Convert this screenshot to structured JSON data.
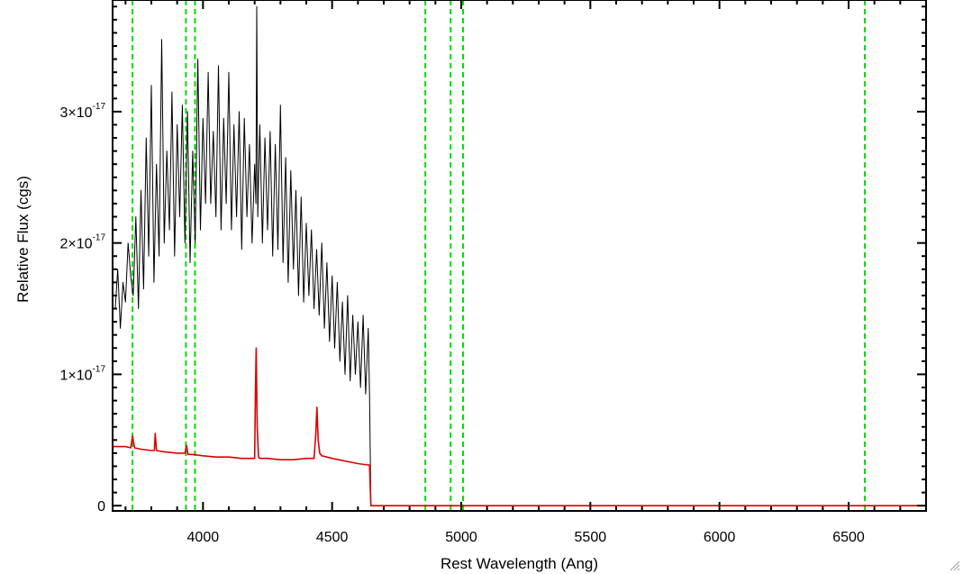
{
  "chart_data": {
    "type": "line",
    "title": "",
    "xlabel": "Rest Wavelength (Ang)",
    "ylabel": "Relative Flux (cgs)",
    "xlim": [
      3650,
      6800
    ],
    "ylim": [
      -4e-19,
      3.85e-17
    ],
    "x_ticks": [
      {
        "value": 4000,
        "label": "4000"
      },
      {
        "value": 4500,
        "label": "4500"
      },
      {
        "value": 5000,
        "label": "5000"
      },
      {
        "value": 5500,
        "label": "5500"
      },
      {
        "value": 6000,
        "label": "6000"
      },
      {
        "value": 6500,
        "label": "6500"
      }
    ],
    "y_ticks": [
      {
        "value": 0,
        "mantissa": "0",
        "exponent": ""
      },
      {
        "value": 1e-17,
        "mantissa": "1×10",
        "exponent": "-17"
      },
      {
        "value": 2e-17,
        "mantissa": "2×10",
        "exponent": "-17"
      },
      {
        "value": 3e-17,
        "mantissa": "3×10",
        "exponent": "-17"
      }
    ],
    "reference_lines": {
      "color": "#00dd00",
      "style": "dashed",
      "x": [
        3727,
        3934,
        3969,
        4861,
        4959,
        5007,
        6563
      ]
    },
    "grid": false,
    "series": [
      {
        "color": "#000000",
        "x": [
          3660,
          3670,
          3680,
          3690,
          3700,
          3710,
          3720,
          3730,
          3740,
          3750,
          3760,
          3770,
          3780,
          3790,
          3800,
          3810,
          3820,
          3830,
          3840,
          3850,
          3860,
          3870,
          3880,
          3890,
          3900,
          3910,
          3920,
          3930,
          3940,
          3950,
          3960,
          3970,
          3980,
          3990,
          4000,
          4010,
          4020,
          4030,
          4040,
          4050,
          4060,
          4070,
          4080,
          4090,
          4100,
          4110,
          4120,
          4130,
          4140,
          4150,
          4160,
          4170,
          4180,
          4190,
          4200,
          4205,
          4208,
          4212,
          4220,
          4230,
          4240,
          4250,
          4260,
          4270,
          4280,
          4290,
          4300,
          4310,
          4320,
          4330,
          4340,
          4350,
          4360,
          4370,
          4380,
          4390,
          4400,
          4410,
          4420,
          4430,
          4440,
          4450,
          4460,
          4470,
          4480,
          4490,
          4500,
          4510,
          4520,
          4530,
          4540,
          4550,
          4560,
          4570,
          4580,
          4590,
          4600,
          4610,
          4620,
          4630,
          4640,
          4645,
          4650,
          4660,
          4700,
          5000,
          5500,
          6000,
          6500,
          6800
        ],
        "y": [
          1.5e-17,
          1.8e-17,
          1.35e-17,
          1.7e-17,
          1.55e-17,
          2e-17,
          1.75e-17,
          1.6e-17,
          2.2e-17,
          1.5e-17,
          2.4e-17,
          1.65e-17,
          2.8e-17,
          1.9e-17,
          3.2e-17,
          1.7e-17,
          2.6e-17,
          1.9e-17,
          3.55e-17,
          2e-17,
          2.7e-17,
          2.1e-17,
          3.15e-17,
          1.9e-17,
          2.9e-17,
          2.2e-17,
          3.05e-17,
          2e-17,
          3e-17,
          1.85e-17,
          2.7e-17,
          2e-17,
          3.4e-17,
          2.1e-17,
          2.95e-17,
          2.3e-17,
          3.3e-17,
          2.3e-17,
          2.85e-17,
          2.2e-17,
          3.35e-17,
          2.1e-17,
          2.95e-17,
          2.3e-17,
          3.3e-17,
          2.1e-17,
          2.9e-17,
          2.2e-17,
          3e-17,
          1.95e-17,
          2.95e-17,
          2.2e-17,
          2.75e-17,
          2e-17,
          2.6e-17,
          2.3e-17,
          3.8e-17,
          2.2e-17,
          2.9e-17,
          2e-17,
          2.8e-17,
          2.1e-17,
          2.85e-17,
          1.9e-17,
          2.75e-17,
          1.95e-17,
          3.05e-17,
          1.85e-17,
          2.65e-17,
          1.7e-17,
          2.55e-17,
          1.8e-17,
          2.4e-17,
          1.6e-17,
          2.35e-17,
          1.55e-17,
          2.15e-17,
          1.6e-17,
          2.1e-17,
          1.5e-17,
          1.95e-17,
          1.45e-17,
          2e-17,
          1.35e-17,
          1.85e-17,
          1.25e-17,
          1.75e-17,
          1.2e-17,
          1.7e-17,
          1.1e-17,
          1.55e-17,
          1e-17,
          1.6e-17,
          9.5e-18,
          1.45e-17,
          1e-17,
          1.4e-17,
          9e-18,
          1.45e-17,
          8.5e-18,
          1.35e-17,
          8.5e-18,
          0.0,
          0.0,
          0.0,
          0.0,
          0.0,
          0.0,
          0.0,
          0.0
        ]
      },
      {
        "color": "#dd0000",
        "x": [
          3650,
          3700,
          3720,
          3727,
          3735,
          3760,
          3800,
          3812,
          3815,
          3820,
          3850,
          3900,
          3930,
          3936,
          3942,
          3960,
          4000,
          4050,
          4100,
          4150,
          4190,
          4200,
          4203,
          4206,
          4210,
          4215,
          4220,
          4250,
          4300,
          4350,
          4400,
          4430,
          4437,
          4441,
          4446,
          4452,
          4460,
          4500,
          4550,
          4600,
          4640,
          4645,
          4650,
          4660,
          4700,
          5000,
          5500,
          6000,
          6500,
          6800
        ],
        "y": [
          4.5e-18,
          4.5e-18,
          4.4e-18,
          5.3e-18,
          4.4e-18,
          4.3e-18,
          4.2e-18,
          4.2e-18,
          5.5e-18,
          4.2e-18,
          4.1e-18,
          4e-18,
          4e-18,
          4.6e-18,
          3.9e-18,
          3.9e-18,
          3.8e-18,
          3.7e-18,
          3.7e-18,
          3.6e-18,
          3.6e-18,
          3.6e-18,
          8.5e-18,
          1.2e-17,
          6e-18,
          3.7e-18,
          3.6e-18,
          3.6e-18,
          3.5e-18,
          3.5e-18,
          3.6e-18,
          3.6e-18,
          5.5e-18,
          7.5e-18,
          5e-18,
          4e-18,
          3.8e-18,
          3.6e-18,
          3.4e-18,
          3.2e-18,
          3.1e-18,
          3.1e-18,
          0.0,
          0.0,
          0.0,
          0.0,
          0.0,
          0.0,
          0.0,
          0.0
        ]
      }
    ]
  }
}
